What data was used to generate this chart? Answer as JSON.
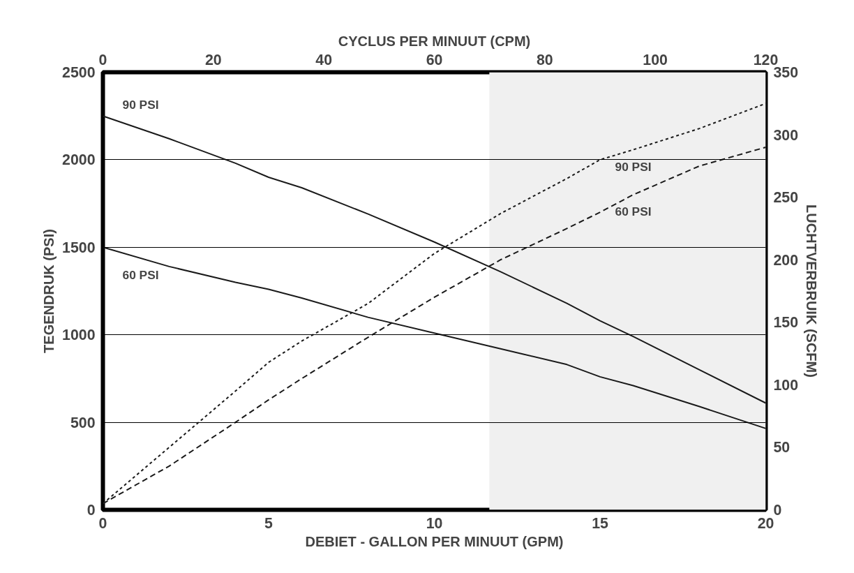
{
  "chart_data": {
    "type": "line",
    "xlabel": "DEBIET - GALLON PER MINUUT (GPM)",
    "ylabel": "TEGENDRUK (PSI)",
    "y2label": "LUCHTVERBRUIK (SCFM)",
    "x2label": "CYCLUS PER MINUUT (CPM)",
    "x": [
      0,
      2,
      4,
      5,
      6,
      8,
      10,
      12,
      14,
      15,
      16,
      18,
      20
    ],
    "series": [
      {
        "name": "90 PSI",
        "color": "#1a1a1a",
        "line_style": "solid",
        "values": [
          2250,
          2120,
          1980,
          1900,
          1840,
          1690,
          1530,
          1360,
          1180,
          1080,
          990,
          800,
          610
        ]
      },
      {
        "name": "60 PSI",
        "color": "#1a1a1a",
        "line_style": "solid",
        "values": [
          1500,
          1390,
          1300,
          1260,
          1210,
          1100,
          1010,
          920,
          830,
          760,
          710,
          590,
          465
        ]
      },
      {
        "name": "90 PSI",
        "color": "#1a1a1a",
        "line_style": "dotted",
        "axis": "y2",
        "values": [
          5,
          50,
          95,
          118,
          135,
          165,
          205,
          237,
          265,
          280,
          288,
          305,
          325
        ]
      },
      {
        "name": "60 PSI",
        "color": "#1a1a1a",
        "line_style": "dashed",
        "axis": "y2",
        "values": [
          5,
          35,
          70,
          88,
          105,
          138,
          170,
          200,
          225,
          238,
          252,
          275,
          290
        ]
      }
    ],
    "xlim": [
      0,
      20
    ],
    "xticks": [
      0,
      5,
      10,
      15,
      20
    ],
    "ylim": [
      0,
      2500
    ],
    "yticks": [
      0,
      500,
      1000,
      1500,
      2000,
      2500
    ],
    "y2lim": [
      0,
      350
    ],
    "y2ticks": [
      0,
      50,
      100,
      150,
      200,
      250,
      300,
      350
    ],
    "x2lim": [
      0,
      120
    ],
    "x2ticks": [
      0,
      20,
      40,
      60,
      80,
      100,
      120
    ],
    "bands": [
      {
        "axis": "x",
        "from": 11.66,
        "to": 20,
        "color": "#f0f0f0"
      }
    ],
    "grid": true,
    "marker": "none"
  }
}
